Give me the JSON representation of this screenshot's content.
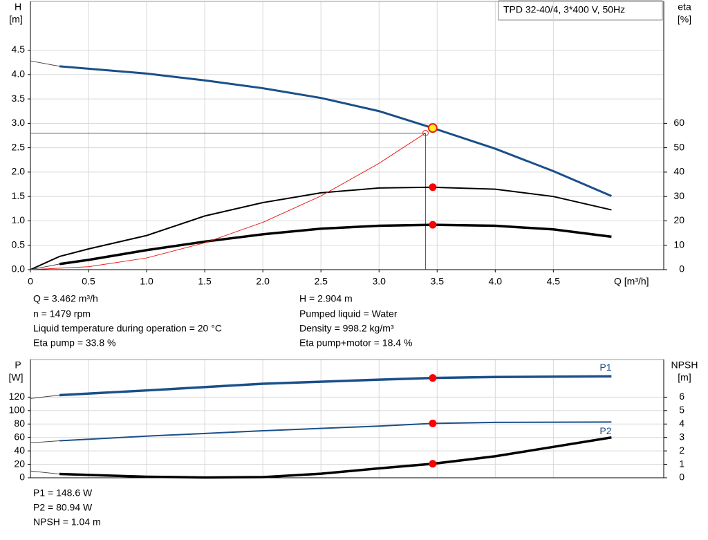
{
  "chart_data": [
    {
      "type": "line",
      "title": "TPD 32-40/4, 3*400 V, 50Hz",
      "ylabel": [
        "H",
        "[m]"
      ],
      "y2label": [
        "eta",
        "[%]"
      ],
      "xlabel": "Q [m³/h]",
      "xlim": [
        0,
        5.45
      ],
      "ylim": [
        0,
        5.5
      ],
      "y2lim": [
        0,
        110
      ],
      "xticks": [
        0,
        0.5,
        {
          "value": 1,
          "label": "1.0"
        },
        1.5,
        {
          "value": 2,
          "label": "2.0"
        },
        2.5,
        {
          "value": 3,
          "label": "3.0"
        },
        3.5,
        {
          "value": 4,
          "label": "4.0"
        },
        4.5
      ],
      "yticks": [
        {
          "value": 0,
          "label": "0.0"
        },
        0.5,
        {
          "value": 1,
          "label": "1.0"
        },
        1.5,
        {
          "value": 2,
          "label": "2.0"
        },
        2.5,
        {
          "value": 3,
          "label": "3.0"
        },
        3.5,
        {
          "value": 4,
          "label": "4.0"
        },
        4.5
      ],
      "y2ticks": [
        0,
        10,
        20,
        30,
        40,
        50,
        60
      ],
      "grid": true,
      "operating_point": {
        "x": 3.462,
        "y": 2.904
      },
      "crosshair": {
        "x": 3.4,
        "y": 2.8
      },
      "series": [
        {
          "color": "#1a4f8a",
          "width": 3,
          "x": [
            0.25,
            0.5,
            1,
            1.5,
            2,
            2.5,
            3,
            3.462,
            4,
            4.5,
            5
          ],
          "values": [
            4.17,
            4.12,
            4.02,
            3.88,
            3.72,
            3.52,
            3.25,
            2.904,
            2.48,
            2.02,
            1.51
          ]
        },
        {
          "color": "#444444",
          "width": 1,
          "x": [
            0,
            0.25
          ],
          "values": [
            4.28,
            4.17
          ]
        },
        {
          "color": "#000000",
          "width": 2,
          "axis": "y2",
          "x": [
            0,
            0.25,
            0.5,
            1,
            1.5,
            2,
            2.5,
            3,
            3.462,
            4,
            4.5,
            5
          ],
          "values": [
            0,
            5.4,
            8.5,
            14,
            22,
            27.5,
            31.5,
            33.5,
            33.8,
            33,
            30,
            24.5
          ]
        },
        {
          "color": "#000000",
          "width": 3.5,
          "axis": "y2",
          "x": [
            0.25,
            0.5,
            1,
            1.5,
            2,
            2.5,
            3,
            3.462,
            4,
            4.5,
            5
          ],
          "values": [
            2.3,
            4,
            8,
            11.5,
            14.5,
            16.8,
            18,
            18.4,
            18,
            16.5,
            13.5
          ]
        },
        {
          "color": "#444444",
          "width": 1,
          "axis": "y2",
          "x": [
            0,
            0.25
          ],
          "values": [
            0,
            2.3
          ]
        },
        {
          "color": "#e8201a",
          "width": 1,
          "x": [
            0,
            0.5,
            1,
            1.5,
            2,
            2.5,
            3,
            3.4
          ],
          "values": [
            0,
            0.06,
            0.24,
            0.55,
            0.97,
            1.51,
            2.18,
            2.8
          ]
        }
      ]
    },
    {
      "type": "line",
      "ylabel": [
        "P",
        "[W]"
      ],
      "y2label": [
        "NPSH",
        "[m]"
      ],
      "xlim": [
        0,
        5.45
      ],
      "ylim": [
        0,
        176
      ],
      "y2lim": [
        0,
        8.8
      ],
      "yticks": [
        0,
        20,
        40,
        60,
        80,
        100,
        120
      ],
      "y2ticks": [
        0,
        1,
        2,
        3,
        4,
        5,
        6
      ],
      "grid": true,
      "series": [
        {
          "name": "P1",
          "label_side": "above",
          "color": "#1a4f8a",
          "width": 3.5,
          "x": [
            0.25,
            1,
            2,
            3,
            3.462,
            4,
            5
          ],
          "values": [
            123,
            130,
            140,
            146,
            148.6,
            150,
            151
          ]
        },
        {
          "color": "#444444",
          "width": 1,
          "x": [
            0,
            0.25
          ],
          "values": [
            118,
            123
          ]
        },
        {
          "name": "P2",
          "label_side": "below",
          "color": "#1a4f8a",
          "width": 2,
          "x": [
            0.25,
            1,
            2,
            3,
            3.462,
            4,
            5
          ],
          "values": [
            55,
            62,
            70,
            77,
            80.94,
            82.5,
            83
          ]
        },
        {
          "color": "#444444",
          "width": 1,
          "x": [
            0,
            0.25
          ],
          "values": [
            52,
            55
          ]
        },
        {
          "color": "#000000",
          "width": 3.5,
          "axis": "y2",
          "x": [
            0.25,
            1,
            1.5,
            2,
            2.5,
            3,
            3.462,
            4,
            4.5,
            5
          ],
          "values": [
            0.28,
            0.08,
            0.02,
            0.05,
            0.3,
            0.7,
            1.04,
            1.6,
            2.3,
            3.0
          ]
        },
        {
          "color": "#444444",
          "width": 1,
          "axis": "y2",
          "x": [
            0,
            0.25
          ],
          "values": [
            0.5,
            0.28
          ]
        }
      ]
    }
  ],
  "info_top": {
    "left": [
      "Q = 3.462 m³/h",
      "n = 1479 rpm",
      "Liquid temperature during operation = 20 °C",
      "Eta pump = 33.8 %"
    ],
    "right": [
      "H = 2.904 m",
      "Pumped liquid = Water",
      "Density = 998.2 kg/m³",
      "Eta pump+motor = 18.4 %"
    ]
  },
  "info_bottom": [
    "P1 = 148.6 W",
    "P2 = 80.94 W",
    "NPSH = 1.04 m"
  ]
}
